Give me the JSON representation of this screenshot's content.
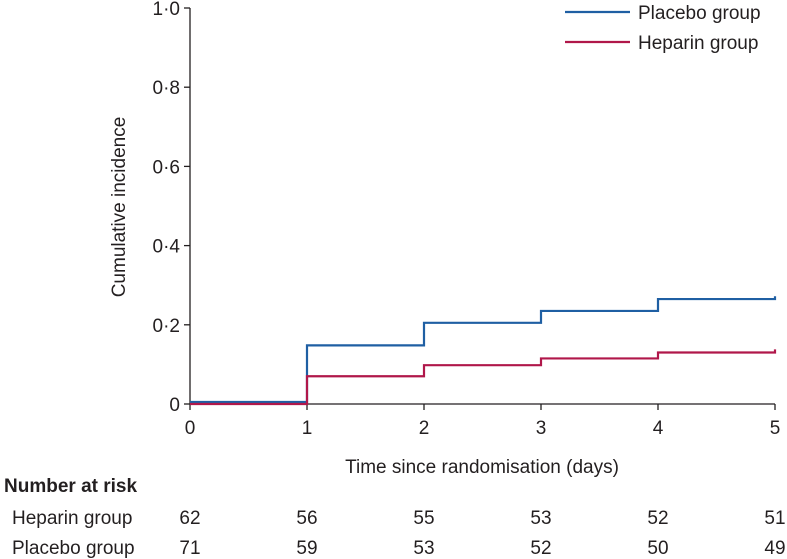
{
  "chart_data": {
    "type": "line",
    "step": true,
    "xlabel": "Time since randomisation (days)",
    "ylabel": "Cumulative incidence",
    "xlim": [
      0,
      5
    ],
    "ylim": [
      0,
      1.0
    ],
    "x_ticks": [
      "0",
      "1",
      "2",
      "3",
      "4",
      "5"
    ],
    "y_ticks": [
      "0",
      "0·2",
      "0·4",
      "0·6",
      "0·8",
      "1·0"
    ],
    "grid": false,
    "legend_position": "top-right",
    "series": [
      {
        "name": "Placebo group",
        "color": "#1f5fa3",
        "x": [
          0,
          1,
          2,
          3,
          4,
          5
        ],
        "y": [
          0.005,
          0.148,
          0.205,
          0.235,
          0.265,
          0.272
        ]
      },
      {
        "name": "Heparin group",
        "color": "#b0174a",
        "x": [
          0,
          1,
          2,
          3,
          4,
          5
        ],
        "y": [
          0.0,
          0.07,
          0.098,
          0.115,
          0.13,
          0.138
        ]
      }
    ],
    "risk_table": {
      "title": "Number at risk",
      "rows": [
        {
          "label": "Heparin group",
          "values": [
            "62",
            "56",
            "55",
            "53",
            "52",
            "51"
          ]
        },
        {
          "label": "Placebo group",
          "values": [
            "71",
            "59",
            "53",
            "52",
            "50",
            "49"
          ]
        }
      ]
    }
  }
}
